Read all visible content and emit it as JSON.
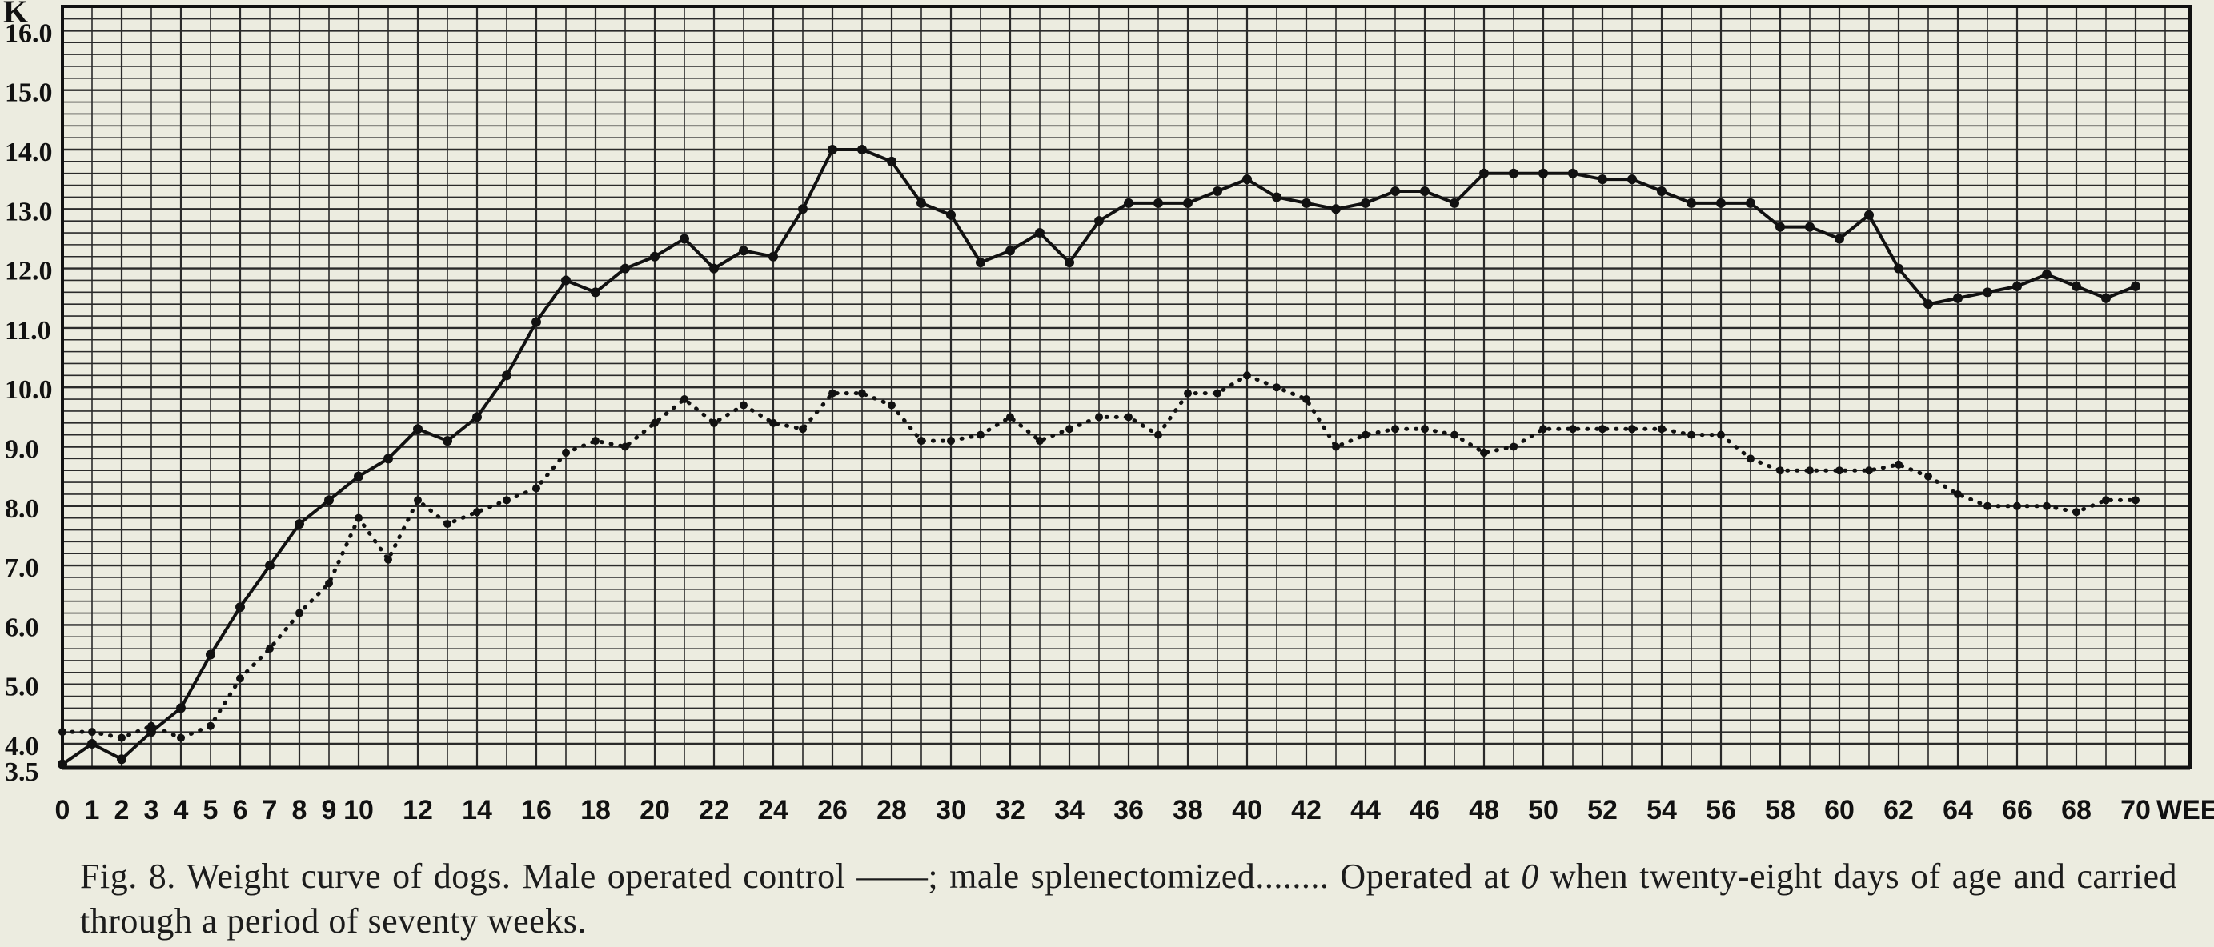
{
  "caption": {
    "p1": "Fig. 8. Weight curve of dogs. Male operated control",
    "solid_mark": "——",
    "p2": "; male splenectomized",
    "dotted_mark": "........",
    "p3": " Operated at ",
    "p4": "0",
    "p5": " when twenty-eight days of age and carried through a period of seventy weeks."
  },
  "chart_data": {
    "type": "line",
    "title": "",
    "xlabel": "WEEKS",
    "ylabel": "K",
    "xlim": [
      0,
      70
    ],
    "ylim": [
      3.5,
      16.6
    ],
    "grid": true,
    "x_tick_labels": [
      "0",
      "1",
      "2",
      "3",
      "4",
      "5",
      "6",
      "7",
      "8",
      "9",
      "10",
      "12",
      "14",
      "16",
      "18",
      "20",
      "22",
      "24",
      "26",
      "28",
      "30",
      "32",
      "34",
      "36",
      "38",
      "40",
      "42",
      "44",
      "46",
      "48",
      "50",
      "52",
      "54",
      "56",
      "58",
      "60",
      "62",
      "64",
      "66",
      "68",
      "70"
    ],
    "y_tick_labels": [
      "3.5",
      "4.0",
      "5.0",
      "6.0",
      "7.0",
      "8.0",
      "9.0",
      "10.0",
      "11.0",
      "12.0",
      "13.0",
      "14.0",
      "15.0",
      "16.0"
    ],
    "series": [
      {
        "name": "Male operated control",
        "style": "solid",
        "x": [
          0,
          1,
          2,
          3,
          4,
          5,
          6,
          7,
          8,
          9,
          10,
          11,
          12,
          13,
          14,
          15,
          16,
          17,
          18,
          19,
          20,
          21,
          22,
          23,
          24,
          25,
          26,
          27,
          28,
          29,
          30,
          31,
          32,
          33,
          34,
          35,
          36,
          37,
          38,
          39,
          40,
          41,
          42,
          43,
          44,
          45,
          46,
          47,
          48,
          49,
          50,
          51,
          52,
          53,
          54,
          55,
          56,
          57,
          58,
          59,
          60,
          61,
          62,
          63,
          64,
          65,
          66,
          67,
          68,
          69,
          70
        ],
        "values": [
          3.6,
          4.0,
          3.7,
          4.2,
          4.6,
          5.5,
          6.3,
          7.0,
          7.7,
          8.1,
          8.5,
          8.8,
          9.3,
          9.1,
          9.5,
          10.2,
          11.1,
          11.8,
          11.6,
          12.0,
          12.2,
          12.5,
          12.0,
          12.3,
          12.2,
          13.0,
          14.0,
          14.0,
          13.8,
          13.1,
          12.9,
          12.1,
          12.3,
          12.6,
          12.1,
          12.8,
          13.1,
          13.1,
          13.1,
          13.3,
          13.5,
          13.2,
          13.1,
          13.0,
          13.1,
          13.3,
          13.3,
          13.1,
          13.6,
          13.6,
          13.6,
          13.6,
          13.5,
          13.5,
          13.3,
          13.1,
          13.1,
          13.1,
          12.7,
          12.7,
          12.5,
          12.9,
          12.0,
          11.4,
          11.5,
          11.6,
          11.7,
          11.9,
          11.7,
          11.5,
          11.7
        ]
      },
      {
        "name": "male splenectomized",
        "style": "dotted",
        "x": [
          0,
          1,
          2,
          3,
          4,
          5,
          6,
          7,
          8,
          9,
          10,
          11,
          12,
          13,
          14,
          15,
          16,
          17,
          18,
          19,
          20,
          21,
          22,
          23,
          24,
          25,
          26,
          27,
          28,
          29,
          30,
          31,
          32,
          33,
          34,
          35,
          36,
          37,
          38,
          39,
          40,
          41,
          42,
          43,
          44,
          45,
          46,
          47,
          48,
          49,
          50,
          51,
          52,
          53,
          54,
          55,
          56,
          57,
          58,
          59,
          60,
          61,
          62,
          63,
          64,
          65,
          66,
          67,
          68,
          69,
          70
        ],
        "values": [
          4.2,
          4.2,
          4.1,
          4.3,
          4.1,
          4.3,
          5.1,
          5.6,
          6.2,
          6.7,
          7.8,
          7.1,
          8.1,
          7.7,
          7.9,
          8.1,
          8.3,
          8.9,
          9.1,
          9.0,
          9.4,
          9.8,
          9.4,
          9.7,
          9.4,
          9.3,
          9.9,
          9.9,
          9.7,
          9.1,
          9.1,
          9.2,
          9.5,
          9.1,
          9.3,
          9.5,
          9.5,
          9.2,
          9.9,
          9.9,
          10.2,
          10.0,
          9.8,
          9.0,
          9.2,
          9.3,
          9.3,
          9.2,
          8.9,
          9.0,
          9.3,
          9.3,
          9.3,
          9.3,
          9.3,
          9.2,
          9.2,
          8.8,
          8.6,
          8.6,
          8.6,
          8.6,
          8.7,
          8.5,
          8.2,
          8.0,
          8.0,
          8.0,
          7.9,
          8.1,
          8.1
        ]
      }
    ]
  }
}
